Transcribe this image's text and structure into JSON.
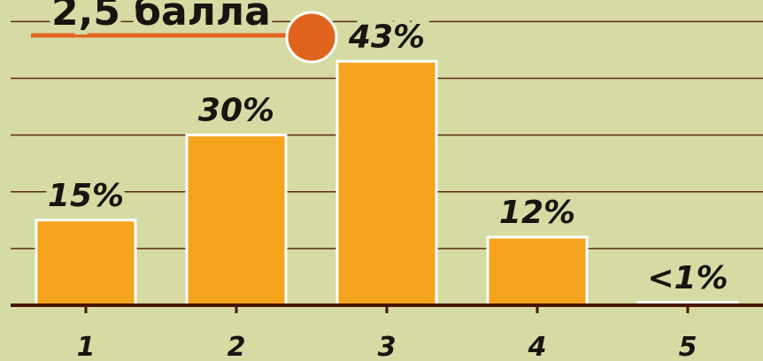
{
  "chart_data": {
    "type": "bar",
    "title": "2,5 балла",
    "categories": [
      "1",
      "2",
      "3",
      "4",
      "5"
    ],
    "values": [
      15,
      30,
      43,
      12,
      0.5
    ],
    "value_labels": [
      "15%",
      "30%",
      "43%",
      "12%",
      "<1%"
    ],
    "color": "#f5a31c",
    "ylim": [
      0,
      51
    ],
    "yticks": [
      0,
      10,
      20,
      30,
      40,
      50
    ],
    "grid": true
  }
}
